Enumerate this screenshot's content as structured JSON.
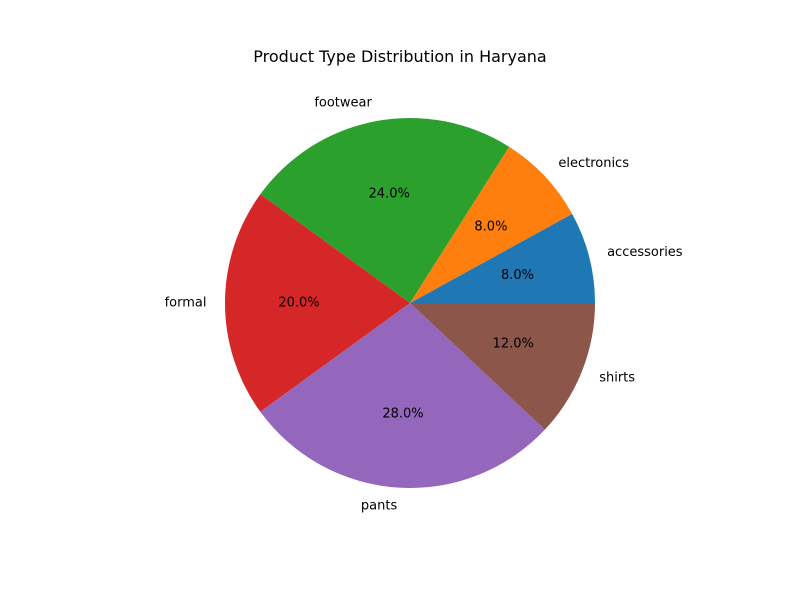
{
  "chart_data": {
    "type": "pie",
    "title": "Product Type Distribution in Haryana",
    "categories": [
      "accessories",
      "electronics",
      "footwear",
      "formal",
      "pants",
      "shirts"
    ],
    "values": [
      8.0,
      8.0,
      24.0,
      20.0,
      28.0,
      12.0
    ],
    "value_labels": [
      "8.0%",
      "8.0%",
      "24.0%",
      "20.0%",
      "28.0%",
      "12.0%"
    ],
    "colors": [
      "#1f77b4",
      "#ff7f0e",
      "#2ca02c",
      "#d62728",
      "#9467bd",
      "#8c564b"
    ],
    "start_angle_deg": 0,
    "direction": "counterclockwise",
    "legend": "none"
  }
}
